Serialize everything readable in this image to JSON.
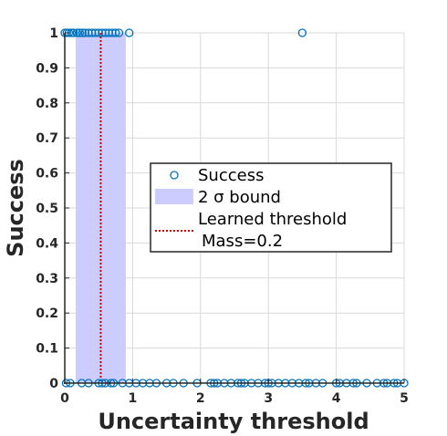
{
  "chart_data": {
    "type": "scatter",
    "title": "",
    "xlabel": "Uncertainty threshold",
    "ylabel": "Success",
    "xlim": [
      0,
      5
    ],
    "ylim": [
      0,
      1
    ],
    "xticks": [
      0,
      1,
      2,
      3,
      4,
      5
    ],
    "xtick_labels": [
      "0",
      "1",
      "2",
      "3",
      "4",
      "5"
    ],
    "yticks": [
      0,
      0.1,
      0.2,
      0.3,
      0.4,
      0.5,
      0.6,
      0.7,
      0.8,
      0.9,
      1
    ],
    "ytick_labels": [
      "0",
      "0.1",
      "0.2",
      "0.3",
      "0.4",
      "0.5",
      "0.6",
      "0.7",
      "0.8",
      "0.9",
      "1"
    ],
    "grid": true,
    "legend_position": "center-right",
    "colors": {
      "marker": "#0072bd",
      "band_fill": "#ccccff",
      "threshold_line": "#cc0000",
      "axis": "#262626",
      "grid": "#d9d9d9"
    },
    "series": [
      {
        "name": "Success",
        "kind": "scatter",
        "points": [
          [
            0.0,
            1
          ],
          [
            0.03,
            1
          ],
          [
            0.06,
            1
          ],
          [
            0.1,
            1
          ],
          [
            0.13,
            1
          ],
          [
            0.18,
            1
          ],
          [
            0.22,
            1
          ],
          [
            0.26,
            1
          ],
          [
            0.3,
            1
          ],
          [
            0.35,
            1
          ],
          [
            0.4,
            1
          ],
          [
            0.45,
            1
          ],
          [
            0.5,
            1
          ],
          [
            0.55,
            1
          ],
          [
            0.6,
            1
          ],
          [
            0.65,
            1
          ],
          [
            0.7,
            1
          ],
          [
            0.75,
            1
          ],
          [
            0.8,
            1
          ],
          [
            0.95,
            1
          ],
          [
            3.5,
            1
          ],
          [
            0.02,
            0
          ],
          [
            0.08,
            0
          ],
          [
            0.25,
            0
          ],
          [
            0.35,
            0
          ],
          [
            0.5,
            0
          ],
          [
            0.55,
            0
          ],
          [
            0.6,
            0
          ],
          [
            0.68,
            0
          ],
          [
            0.72,
            0
          ],
          [
            0.85,
            0
          ],
          [
            0.95,
            0
          ],
          [
            1.05,
            0
          ],
          [
            1.15,
            0
          ],
          [
            1.25,
            0
          ],
          [
            1.35,
            0
          ],
          [
            1.5,
            0
          ],
          [
            1.6,
            0
          ],
          [
            1.75,
            0
          ],
          [
            1.95,
            0
          ],
          [
            2.15,
            0
          ],
          [
            2.2,
            0
          ],
          [
            2.25,
            0
          ],
          [
            2.35,
            0
          ],
          [
            2.45,
            0
          ],
          [
            2.55,
            0
          ],
          [
            2.6,
            0
          ],
          [
            2.65,
            0
          ],
          [
            2.75,
            0
          ],
          [
            2.85,
            0
          ],
          [
            2.95,
            0
          ],
          [
            3.0,
            0
          ],
          [
            3.05,
            0
          ],
          [
            3.15,
            0
          ],
          [
            3.25,
            0
          ],
          [
            3.35,
            0
          ],
          [
            3.45,
            0
          ],
          [
            3.55,
            0
          ],
          [
            3.6,
            0
          ],
          [
            3.7,
            0
          ],
          [
            3.8,
            0
          ],
          [
            4.0,
            0
          ],
          [
            4.05,
            0
          ],
          [
            4.15,
            0
          ],
          [
            4.25,
            0
          ],
          [
            4.3,
            0
          ],
          [
            4.45,
            0
          ],
          [
            4.6,
            0
          ],
          [
            4.7,
            0
          ],
          [
            4.75,
            0
          ],
          [
            4.85,
            0
          ],
          [
            4.9,
            0
          ],
          [
            5.0,
            0
          ]
        ]
      },
      {
        "name": "2 σ bound",
        "kind": "band",
        "x_range": [
          0.16,
          0.9
        ]
      },
      {
        "name": "Learned threshold",
        "kind": "vline",
        "x": 0.53
      }
    ],
    "annotations": [
      "Mass=0.2"
    ]
  }
}
